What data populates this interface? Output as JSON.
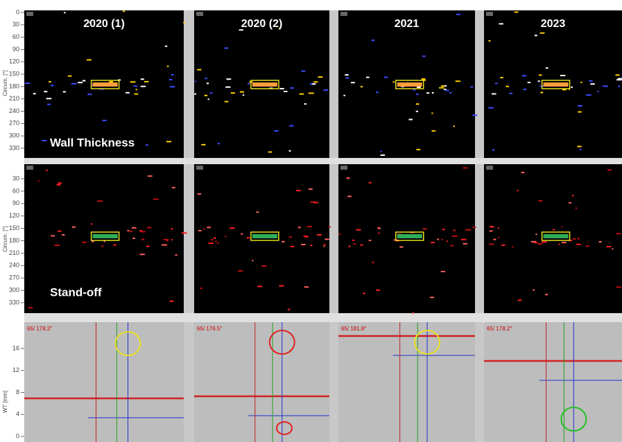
{
  "columns": [
    "2020 (1)",
    "2020 (2)",
    "2021",
    "2023"
  ],
  "rows": [
    {
      "label": "Wall Thickness",
      "axis_label": "Circum. [°]",
      "ticks": [
        0,
        30,
        60,
        90,
        120,
        150,
        180,
        210,
        240,
        270,
        300,
        330
      ]
    },
    {
      "label": "Stand-off",
      "axis_label": "Circum. [°]",
      "ticks": [
        30,
        60,
        90,
        120,
        150,
        180,
        210,
        240,
        270,
        300,
        330
      ]
    },
    {
      "axis_label": "WT [mm]",
      "ticks": [
        16,
        12,
        8,
        4,
        0
      ]
    }
  ],
  "cursor_labels": [
    "65/ 178.2°",
    "65/ 176.5°",
    "65/ 181.8°",
    "65/ 178.2°"
  ]
}
